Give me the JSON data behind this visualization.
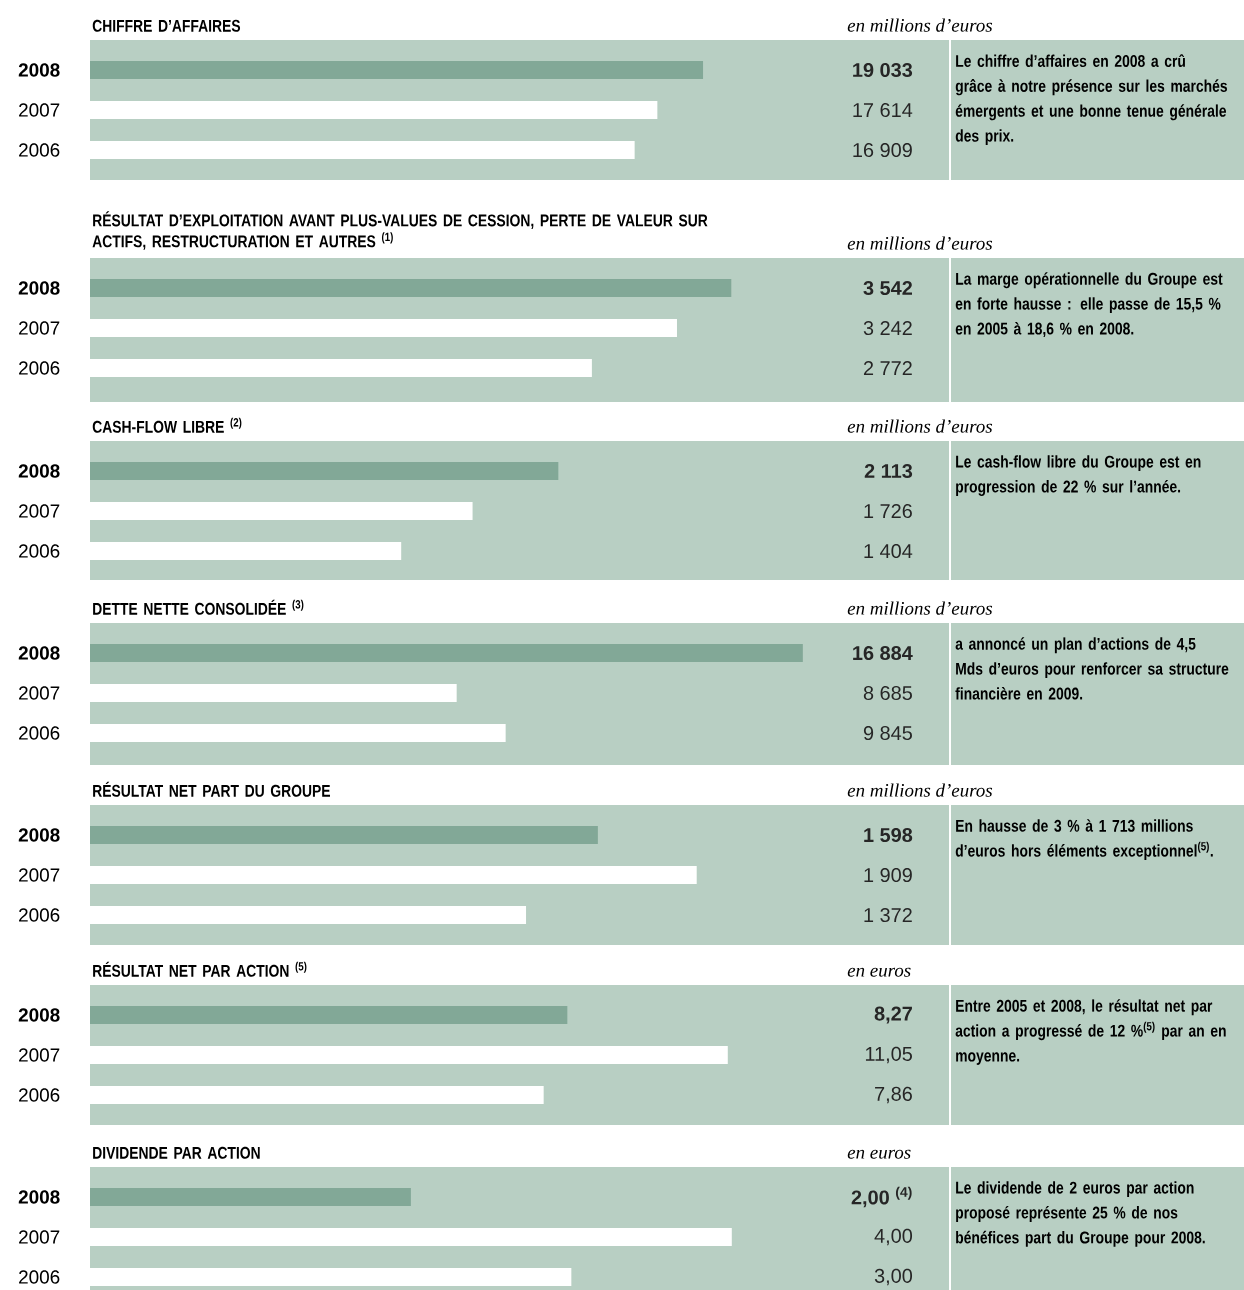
{
  "chart_data": [
    {
      "type": "bar",
      "orientation": "horizontal",
      "title": "CHIFFRE D’AFFAIRES",
      "subtitle": "en millions d’euros",
      "categories": [
        "2008",
        "2007",
        "2006"
      ],
      "values": [
        19033,
        17614,
        16909
      ],
      "value_labels": [
        "19 033",
        "17 614",
        "16 909"
      ],
      "colors": [
        "#82a897",
        "#ffffff",
        "#ffffff"
      ],
      "xlim": [
        0,
        26700
      ],
      "annotations": [
        "Le chiffre d’affaires en 2008 a crû grâce à notre présence sur les marchés émergents et une bonne tenue générale des prix."
      ]
    },
    {
      "type": "bar",
      "orientation": "horizontal",
      "title": "RÉSULTAT D’EXPLOITATION AVANT PLUS-VALUES DE CESSION, PERTE DE VALEUR SUR ACTIFS, RESTRUCTURATION ET AUTRES $^{(1)}$",
      "subtitle": "en millions d’euros",
      "categories": [
        "2008",
        "2007",
        "2006"
      ],
      "values": [
        3542,
        3242,
        2772
      ],
      "value_labels": [
        "3 542",
        "3 242",
        "2 772"
      ],
      "colors": [
        "#82a897",
        "#ffffff",
        "#ffffff"
      ],
      "xlim": [
        0,
        4750
      ],
      "annotations": [
        "La marge opérationnelle du Groupe est en forte hausse : elle passe de 15,5 % en 2005 à 18,6 % en 2008."
      ]
    },
    {
      "type": "bar",
      "orientation": "horizontal",
      "title": "CASH-FLOW LIBRE $^{(2)}$",
      "subtitle": "en millions d’euros",
      "categories": [
        "2008",
        "2007",
        "2006"
      ],
      "values": [
        2113,
        1726,
        1404
      ],
      "value_labels": [
        "2 113",
        "1 726",
        "1 404"
      ],
      "colors": [
        "#82a897",
        "#ffffff",
        "#ffffff"
      ],
      "xlim": [
        0,
        3880
      ],
      "annotations": [
        "Le cash-flow libre du Groupe est en progression de 22 % sur l’année."
      ]
    },
    {
      "type": "bar",
      "orientation": "horizontal",
      "title": "DETTE NETTE CONSOLIDÉE $^{(3)}$",
      "subtitle": "en millions d’euros",
      "categories": [
        "2008",
        "2007",
        "2006"
      ],
      "values": [
        16884,
        8685,
        9845
      ],
      "value_labels": [
        "16 884",
        "8 685",
        "9 845"
      ],
      "colors": [
        "#82a897",
        "#ffffff",
        "#ffffff"
      ],
      "xlim": [
        0,
        20370
      ],
      "annotations": [
        "a annoncé un plan d’actions de 4,5 Mds d’euros pour renforcer sa structure financière en 2009."
      ]
    },
    {
      "type": "bar",
      "orientation": "horizontal",
      "title": "RÉSULTAT NET PART DU GROUPE",
      "subtitle": "en millions d’euros",
      "categories": [
        "2008",
        "2007",
        "2006"
      ],
      "values": [
        1598,
        1909,
        1372
      ],
      "value_labels": [
        "1 598",
        "1 909",
        "1 372"
      ],
      "colors": [
        "#82a897",
        "#ffffff",
        "#ffffff"
      ],
      "xlim": [
        0,
        2706
      ],
      "annotations": [
        "En hausse de 3 % à 1 713 millions d’euros hors éléments exceptionnel$^{(5)}$."
      ]
    },
    {
      "type": "bar",
      "orientation": "horizontal",
      "title": "RÉSULTAT NET PAR ACTION $^{(5)}$",
      "subtitle": "en euros",
      "categories": [
        "2008",
        "2007",
        "2006"
      ],
      "values": [
        8.27,
        11.05,
        7.86
      ],
      "value_labels": [
        "8,27",
        "11,05",
        "7,86"
      ],
      "colors": [
        "#82a897",
        "#ffffff",
        "#ffffff"
      ],
      "xlim": [
        0,
        14.9
      ],
      "annotations": [
        "Entre 2005 et 2008, le résultat net par action a progressé de 12 %$^{(5)}$ par an en moyenne."
      ]
    },
    {
      "type": "bar",
      "orientation": "horizontal",
      "title": "DIVIDENDE PAR ACTION",
      "subtitle": "en euros",
      "categories": [
        "2008",
        "2007",
        "2006"
      ],
      "values": [
        2.0,
        4.0,
        3.0
      ],
      "value_labels": [
        "2,00 $^{(4)}$",
        "4,00",
        "3,00"
      ],
      "colors": [
        "#82a897",
        "#ffffff",
        "#ffffff"
      ],
      "xlim": [
        0,
        5.36
      ],
      "annotations": [
        "Le dividende de 2 euros par action proposé représente 25 % de nos bénéfices part du Groupe pour 2008."
      ]
    }
  ]
}
